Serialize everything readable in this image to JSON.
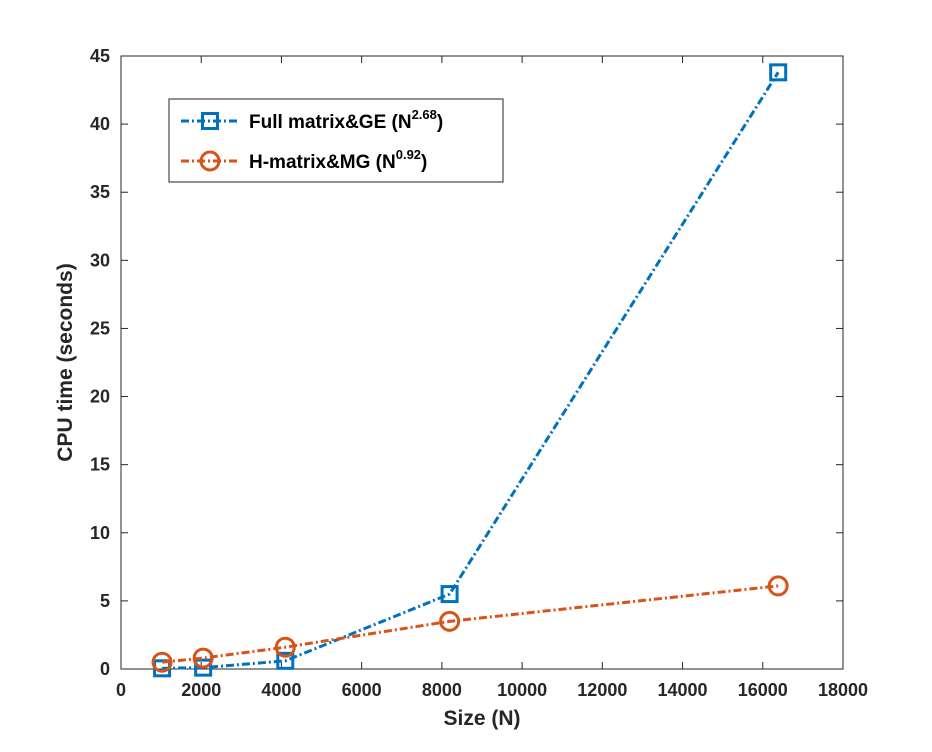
{
  "chart_data": {
    "type": "line",
    "title": "",
    "xlabel": "Size (N)",
    "ylabel": "CPU time (seconds)",
    "xlim": [
      0,
      18000
    ],
    "ylim": [
      0,
      45
    ],
    "xticks": [
      0,
      2000,
      4000,
      6000,
      8000,
      10000,
      12000,
      14000,
      16000,
      18000
    ],
    "yticks": [
      0,
      5,
      10,
      15,
      20,
      25,
      30,
      35,
      40,
      45
    ],
    "xtick_labels": [
      "0",
      "2000",
      "4000",
      "6000",
      "8000",
      "10000",
      "12000",
      "14000",
      "16000",
      "18000"
    ],
    "ytick_labels": [
      "0",
      "5",
      "10",
      "15",
      "20",
      "25",
      "30",
      "35",
      "40",
      "45"
    ],
    "grid": false,
    "legend_position": "top-left",
    "series": [
      {
        "name": "Full matrix&GE",
        "legend_base": "Full matrix&GE (N",
        "legend_exp": "2.68",
        "legend_close": ")",
        "color": "#0072BD",
        "marker": "square",
        "line_style": "dashdot",
        "x": [
          1024,
          2048,
          4096,
          8192,
          16384
        ],
        "y": [
          0.05,
          0.1,
          0.6,
          5.5,
          43.8
        ]
      },
      {
        "name": "H-matrix&MG",
        "legend_base": "H-matrix&MG  (N",
        "legend_exp": "0.92",
        "legend_close": ")",
        "color": "#D95319",
        "marker": "circle",
        "line_style": "dashdot",
        "x": [
          1024,
          2048,
          4096,
          8192,
          16384
        ],
        "y": [
          0.5,
          0.8,
          1.6,
          3.5,
          6.1
        ]
      }
    ]
  }
}
